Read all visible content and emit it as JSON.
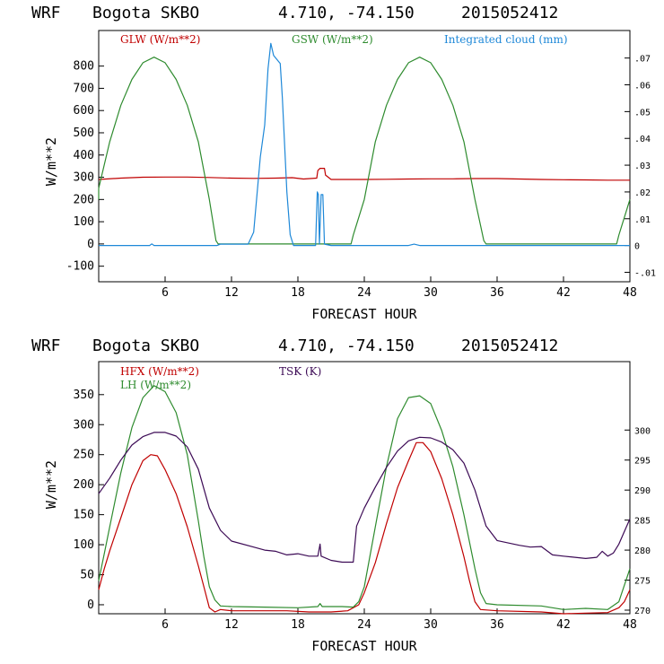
{
  "colors": {
    "glw": "#c00000",
    "gsw": "#2e8b2e",
    "cloud": "#1e88d8",
    "hfx": "#c00000",
    "lh": "#2e8b2e",
    "tsk": "#3c0a55"
  },
  "chart_data": [
    {
      "type": "line",
      "header": [
        "WRF",
        "Bogota SKBO",
        "4.710, -74.150",
        "2015052412"
      ],
      "xlabel": "FORECAST HOUR",
      "ylabel": "W/m**2",
      "xlim": [
        0,
        48
      ],
      "ylim": [
        -170,
        960
      ],
      "y2lim": [
        -0.01353,
        0.08028
      ],
      "xticks": [
        6,
        12,
        18,
        24,
        30,
        36,
        42,
        48
      ],
      "yticks": [
        -100,
        0,
        100,
        200,
        300,
        400,
        500,
        600,
        700,
        800
      ],
      "y2ticks": [
        -0.01,
        0,
        0.01,
        0.02,
        0.03,
        0.04,
        0.05,
        0.06,
        0.07
      ],
      "y2ticklabels": [
        "-.01",
        "0",
        ".01",
        ".02",
        ".03",
        ".04",
        ".05",
        ".06",
        ".07"
      ],
      "grid": false,
      "series": [
        {
          "name": "GLW (W/m**2)",
          "axis": "left",
          "color_key": "glw",
          "points": [
            [
              0,
              290
            ],
            [
              2,
              296
            ],
            [
              4,
              300
            ],
            [
              6,
              301
            ],
            [
              8,
              301
            ],
            [
              10,
              299
            ],
            [
              12,
              296
            ],
            [
              14,
              295
            ],
            [
              16,
              296
            ],
            [
              17.5,
              298
            ],
            [
              18.5,
              292
            ],
            [
              19.7,
              296
            ],
            [
              19.8,
              330
            ],
            [
              20.0,
              340
            ],
            [
              20.4,
              340
            ],
            [
              20.5,
              310
            ],
            [
              21,
              290
            ],
            [
              24,
              290
            ],
            [
              26,
              291
            ],
            [
              28,
              292
            ],
            [
              30,
              293
            ],
            [
              32,
              293
            ],
            [
              34,
              294
            ],
            [
              36,
              294
            ],
            [
              38,
              292
            ],
            [
              40,
              290
            ],
            [
              42,
              289
            ],
            [
              44,
              288
            ],
            [
              46,
              287
            ],
            [
              48,
              287
            ]
          ]
        },
        {
          "name": "GSW (W/m**2)",
          "axis": "left",
          "color_key": "gsw",
          "points": [
            [
              -0.3,
              200
            ],
            [
              0,
              250
            ],
            [
              1,
              460
            ],
            [
              2,
              624
            ],
            [
              3,
              740
            ],
            [
              4,
              815
            ],
            [
              5,
              840
            ],
            [
              6,
              815
            ],
            [
              7,
              740
            ],
            [
              8,
              624
            ],
            [
              9,
              460
            ],
            [
              10,
              200
            ],
            [
              10.6,
              15
            ],
            [
              10.8,
              0
            ],
            [
              22.8,
              0
            ],
            [
              23,
              40
            ],
            [
              24,
              200
            ],
            [
              25,
              460
            ],
            [
              26,
              624
            ],
            [
              27,
              740
            ],
            [
              28,
              815
            ],
            [
              29,
              840
            ],
            [
              30,
              815
            ],
            [
              31,
              740
            ],
            [
              32,
              624
            ],
            [
              33,
              460
            ],
            [
              34,
              200
            ],
            [
              34.8,
              15
            ],
            [
              35,
              0
            ],
            [
              46.8,
              0
            ],
            [
              47,
              40
            ],
            [
              48,
              200
            ]
          ]
        },
        {
          "name": "Integrated cloud (mm)",
          "axis": "right",
          "color_key": "cloud",
          "points": [
            [
              0,
              0
            ],
            [
              4.6,
              0
            ],
            [
              4.8,
              0.0006
            ],
            [
              5.0,
              0
            ],
            [
              10.7,
              0
            ],
            [
              11,
              0.0005
            ],
            [
              13.5,
              0.0005
            ],
            [
              14.0,
              0.005
            ],
            [
              14.6,
              0.033
            ],
            [
              15.0,
              0.045
            ],
            [
              15.3,
              0.066
            ],
            [
              15.55,
              0.0755
            ],
            [
              15.8,
              0.071
            ],
            [
              16.2,
              0.069
            ],
            [
              16.4,
              0.068
            ],
            [
              16.6,
              0.055
            ],
            [
              17.0,
              0.02
            ],
            [
              17.3,
              0.004
            ],
            [
              17.6,
              0
            ],
            [
              19.6,
              0
            ],
            [
              19.75,
              0.02
            ],
            [
              19.85,
              0.019
            ],
            [
              19.95,
              0.0005
            ],
            [
              20.1,
              0.019
            ],
            [
              20.25,
              0.019
            ],
            [
              20.4,
              0.0005
            ],
            [
              21,
              0
            ],
            [
              28,
              0
            ],
            [
              28.5,
              0.0005
            ],
            [
              29,
              0
            ],
            [
              48,
              0
            ]
          ]
        }
      ]
    },
    {
      "type": "line",
      "header": [
        "WRF",
        "Bogota SKBO",
        "4.710, -74.150",
        "2015052412"
      ],
      "xlabel": "FORECAST HOUR",
      "ylabel": "W/m**2",
      "xlim": [
        0,
        48
      ],
      "ylim": [
        -15,
        405
      ],
      "y2lim": [
        269.4,
        311.4
      ],
      "xticks": [
        6,
        12,
        18,
        24,
        30,
        36,
        42,
        48
      ],
      "yticks": [
        0,
        50,
        100,
        150,
        200,
        250,
        300,
        350
      ],
      "y2ticks": [
        270,
        275,
        280,
        285,
        290,
        295,
        300
      ],
      "grid": false,
      "series": [
        {
          "name": "HFX (W/m**2)",
          "axis": "left",
          "color_key": "hfx",
          "points": [
            [
              0,
              25
            ],
            [
              0.5,
              60
            ],
            [
              1,
              90
            ],
            [
              2,
              145
            ],
            [
              3,
              200
            ],
            [
              4,
              240
            ],
            [
              4.7,
              250
            ],
            [
              5.3,
              248
            ],
            [
              6,
              225
            ],
            [
              7,
              185
            ],
            [
              8,
              130
            ],
            [
              9,
              65
            ],
            [
              9.5,
              30
            ],
            [
              10,
              -5
            ],
            [
              10.5,
              -12
            ],
            [
              11,
              -8
            ],
            [
              12,
              -10
            ],
            [
              15,
              -10
            ],
            [
              17,
              -10
            ],
            [
              19,
              -12
            ],
            [
              21,
              -12
            ],
            [
              22.5,
              -10
            ],
            [
              23.5,
              0
            ],
            [
              24,
              20
            ],
            [
              25,
              70
            ],
            [
              26,
              135
            ],
            [
              27,
              195
            ],
            [
              28,
              240
            ],
            [
              28.7,
              270
            ],
            [
              29.3,
              270
            ],
            [
              30,
              255
            ],
            [
              31,
              210
            ],
            [
              32,
              150
            ],
            [
              33,
              80
            ],
            [
              33.5,
              40
            ],
            [
              34,
              5
            ],
            [
              34.5,
              -8
            ],
            [
              36,
              -10
            ],
            [
              40,
              -12
            ],
            [
              42,
              -15
            ],
            [
              44,
              -14
            ],
            [
              46,
              -13
            ],
            [
              47,
              -5
            ],
            [
              47.5,
              5
            ],
            [
              48,
              25
            ]
          ]
        },
        {
          "name": "LH  (W/m**2)",
          "axis": "left",
          "color_key": "lh",
          "points": [
            [
              0,
              40
            ],
            [
              0.5,
              85
            ],
            [
              1,
              130
            ],
            [
              2,
              220
            ],
            [
              3,
              295
            ],
            [
              4,
              345
            ],
            [
              5,
              365
            ],
            [
              6,
              355
            ],
            [
              7,
              320
            ],
            [
              8,
              250
            ],
            [
              9,
              140
            ],
            [
              9.5,
              80
            ],
            [
              10,
              30
            ],
            [
              10.5,
              8
            ],
            [
              11,
              -2
            ],
            [
              12,
              -3
            ],
            [
              15,
              -4
            ],
            [
              18,
              -5
            ],
            [
              19.8,
              -3
            ],
            [
              20,
              2
            ],
            [
              20.2,
              -3
            ],
            [
              22,
              -3
            ],
            [
              23,
              -4
            ],
            [
              23.5,
              5
            ],
            [
              24,
              30
            ],
            [
              25,
              130
            ],
            [
              26,
              230
            ],
            [
              27,
              310
            ],
            [
              28,
              345
            ],
            [
              29,
              348
            ],
            [
              30,
              335
            ],
            [
              31,
              290
            ],
            [
              32,
              230
            ],
            [
              33,
              150
            ],
            [
              34,
              60
            ],
            [
              34.5,
              20
            ],
            [
              35,
              2
            ],
            [
              36,
              0
            ],
            [
              40,
              -2
            ],
            [
              42,
              -8
            ],
            [
              44,
              -6
            ],
            [
              46,
              -8
            ],
            [
              47,
              5
            ],
            [
              48,
              60
            ]
          ]
        },
        {
          "name": "TSK (K)",
          "axis": "right",
          "color_key": "tsk",
          "points": [
            [
              0,
              289.4
            ],
            [
              1,
              292
            ],
            [
              2,
              295
            ],
            [
              3,
              297.5
            ],
            [
              4,
              298.9
            ],
            [
              5,
              299.6
            ],
            [
              6,
              299.6
            ],
            [
              7,
              299
            ],
            [
              8,
              297.2
            ],
            [
              9,
              293.5
            ],
            [
              10,
              287
            ],
            [
              11,
              283.3
            ],
            [
              12,
              281.5
            ],
            [
              14,
              280.5
            ],
            [
              15,
              280
            ],
            [
              16,
              279.8
            ],
            [
              17,
              279.2
            ],
            [
              18,
              279.4
            ],
            [
              19,
              279
            ],
            [
              19.8,
              279
            ],
            [
              20,
              281
            ],
            [
              20.1,
              279
            ],
            [
              21,
              278.3
            ],
            [
              22,
              278
            ],
            [
              23,
              278
            ],
            [
              23.3,
              284
            ],
            [
              24,
              287
            ],
            [
              25,
              290.5
            ],
            [
              26,
              293.8
            ],
            [
              27,
              296.5
            ],
            [
              28,
              298.2
            ],
            [
              29,
              298.8
            ],
            [
              30,
              298.7
            ],
            [
              31,
              298
            ],
            [
              32,
              296.7
            ],
            [
              33,
              294.5
            ],
            [
              34,
              290
            ],
            [
              35,
              284
            ],
            [
              36,
              281.6
            ],
            [
              38,
              280.8
            ],
            [
              39,
              280.5
            ],
            [
              40,
              280.6
            ],
            [
              41,
              279.2
            ],
            [
              42,
              279
            ],
            [
              44,
              278.6
            ],
            [
              45,
              278.8
            ],
            [
              45.5,
              279.8
            ],
            [
              46,
              279
            ],
            [
              46.5,
              279.5
            ],
            [
              47,
              281
            ],
            [
              48,
              285.2
            ]
          ]
        }
      ]
    }
  ]
}
